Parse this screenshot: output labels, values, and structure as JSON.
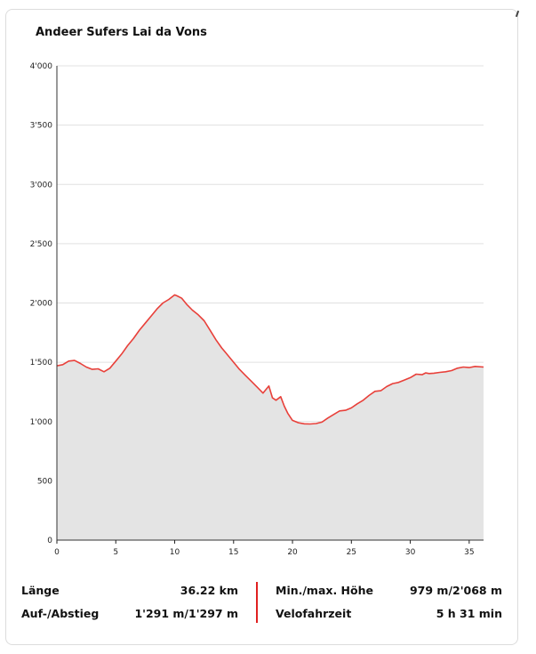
{
  "chart_data": {
    "type": "area",
    "title": "Andeer Sufers Lai da Vons",
    "xlabel": "",
    "ylabel": "",
    "xlim": [
      0,
      36.22
    ],
    "ylim": [
      0,
      4000
    ],
    "x_ticks": [
      "0",
      "5",
      "10",
      "15",
      "20",
      "25",
      "30",
      "35"
    ],
    "y_ticks": [
      "0",
      "500",
      "1'000",
      "1'500",
      "2'000",
      "2'500",
      "3'000",
      "3'500",
      "4'000"
    ],
    "grid": true,
    "colors": {
      "line": "#e8403a",
      "fill": "#e4e4e4",
      "grid": "#e0e0e0"
    },
    "series": [
      {
        "x": [
          0,
          0.5,
          1,
          1.5,
          2,
          2.5,
          3,
          3.5,
          4,
          4.5,
          5,
          5.5,
          6,
          6.5,
          7,
          7.5,
          8,
          8.5,
          9,
          9.5,
          10,
          10.2,
          10.6,
          11,
          11.5,
          12,
          12.5,
          13,
          13.5,
          14,
          14.5,
          15,
          15.5,
          16,
          16.5,
          17,
          17.5,
          18,
          18.3,
          18.6,
          19,
          19.3,
          19.6,
          20,
          20.5,
          21,
          21.5,
          22,
          22.5,
          23,
          23.5,
          24,
          24.5,
          25,
          25.5,
          26,
          26.5,
          27,
          27.5,
          28,
          28.5,
          29,
          29.5,
          30,
          30.5,
          31,
          31.3,
          31.6,
          32,
          32.5,
          33,
          33.5,
          34,
          34.5,
          35,
          35.5,
          36.22
        ],
        "y": [
          1470,
          1480,
          1510,
          1515,
          1490,
          1460,
          1440,
          1445,
          1420,
          1450,
          1510,
          1570,
          1640,
          1700,
          1770,
          1830,
          1890,
          1950,
          2000,
          2030,
          2068,
          2060,
          2040,
          1990,
          1940,
          1900,
          1850,
          1770,
          1690,
          1620,
          1560,
          1500,
          1440,
          1390,
          1340,
          1290,
          1240,
          1300,
          1200,
          1180,
          1210,
          1130,
          1070,
          1010,
          990,
          981,
          979,
          983,
          995,
          1030,
          1060,
          1090,
          1095,
          1115,
          1150,
          1180,
          1220,
          1255,
          1260,
          1295,
          1320,
          1330,
          1350,
          1370,
          1400,
          1395,
          1410,
          1405,
          1408,
          1415,
          1420,
          1430,
          1450,
          1460,
          1455,
          1465,
          1460
        ]
      }
    ]
  },
  "stats": {
    "length_label": "Länge",
    "length_value": "36.22 km",
    "ascent_label": "Auf-/Abstieg",
    "ascent_value": "1'291 m/1'297 m",
    "minmax_label": "Min./max. Höhe",
    "minmax_value": "979 m/2'068 m",
    "time_label": "Velofahrzeit",
    "time_value": "5 h 31 min"
  }
}
